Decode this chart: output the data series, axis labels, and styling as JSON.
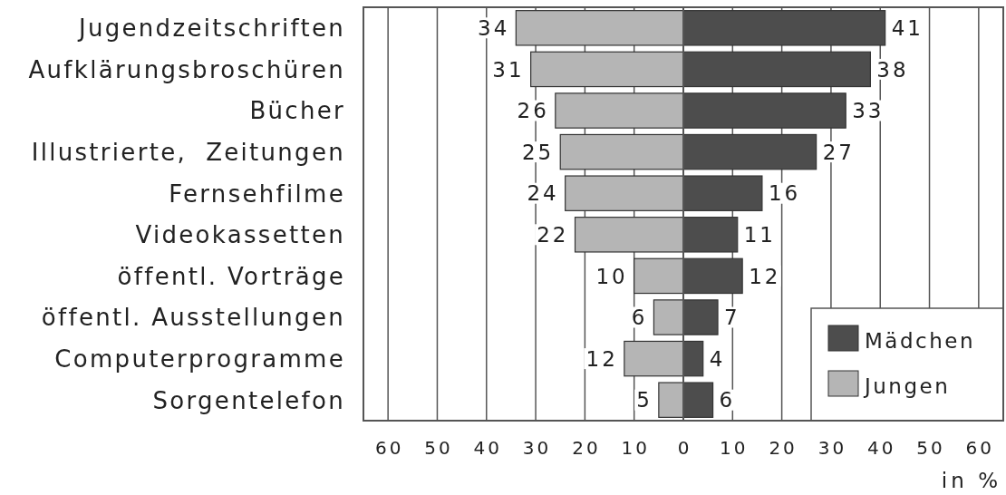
{
  "chart_data": [
    {
      "type": "bar",
      "orientation": "horizontal",
      "categories": [
        "Jugendzeitschriften",
        "Aufklärungsbroschüren",
        "Bücher",
        "Illustrierte,  Zeitungen",
        "Fernsehfilme",
        "Videokassetten",
        "öffentl. Vorträge",
        "öffentl. Ausstellungen",
        "Computerprogramme",
        "Sorgentelefon"
      ],
      "series": [
        {
          "name": "Jungen",
          "color": "#b5b5b5",
          "values": [
            34,
            31,
            26,
            25,
            24,
            22,
            10,
            6,
            12,
            5
          ]
        }
      ],
      "xlim": [
        65,
        0
      ],
      "xticks": [
        60,
        50,
        40,
        30,
        20,
        10,
        0
      ],
      "grid": "x",
      "data_labels": true
    },
    {
      "type": "bar",
      "orientation": "horizontal",
      "categories": [
        null,
        null,
        null,
        null,
        null,
        null,
        null,
        null,
        null,
        null
      ],
      "series": [
        {
          "name": "Mädchen",
          "color": "#4d4d4d",
          "values": [
            41,
            38,
            33,
            27,
            16,
            11,
            12,
            7,
            4,
            6
          ]
        }
      ],
      "xlim": [
        0,
        65
      ],
      "xticks": [
        10,
        20,
        30,
        40,
        50,
        60
      ],
      "xlabel": "in %",
      "grid": "x",
      "data_labels": true,
      "legend": "bottom right",
      "tick_labels": "x"
    }
  ]
}
